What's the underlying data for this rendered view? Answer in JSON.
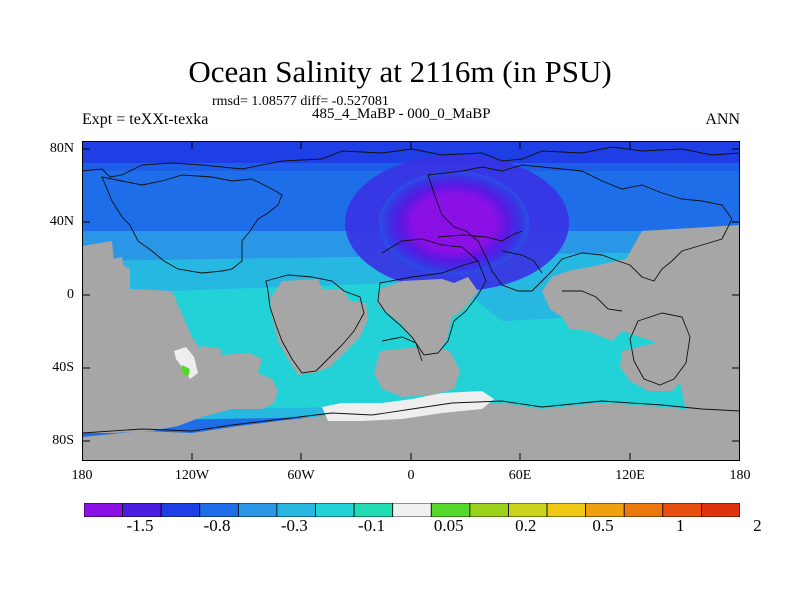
{
  "title": "Ocean Salinity at 2116m (in PSU)",
  "stats": "rmsd= 1.08577 diff= -0.527081",
  "subtitle": "485_4_MaBP - 000_0_MaBP",
  "experiment": "Expt = teXXt-texka",
  "season": "ANN",
  "lat_ticks": [
    "80N",
    "40N",
    "0",
    "40S",
    "80S"
  ],
  "lon_ticks": [
    "180",
    "120W",
    "60W",
    "0",
    "60E",
    "120E",
    "180"
  ],
  "colorbar": {
    "labels": [
      "-1.5",
      "-0.8",
      "-0.3",
      "-0.1",
      "0.05",
      "0.2",
      "0.5",
      "1",
      "2"
    ],
    "colors": [
      "#8a10e6",
      "#4b1de0",
      "#1e3ee6",
      "#1d6ee8",
      "#2a96e6",
      "#27b8e2",
      "#22d2d6",
      "#1fdcb2",
      "#f0f0f0",
      "#55d82a",
      "#9ad21a",
      "#cdd21a",
      "#f0c814",
      "#f0a00e",
      "#ec780c",
      "#e85010",
      "#e03010"
    ]
  },
  "colors": {
    "land": "#a6a6a6",
    "sea_ice_white": "#eeeeee"
  }
}
